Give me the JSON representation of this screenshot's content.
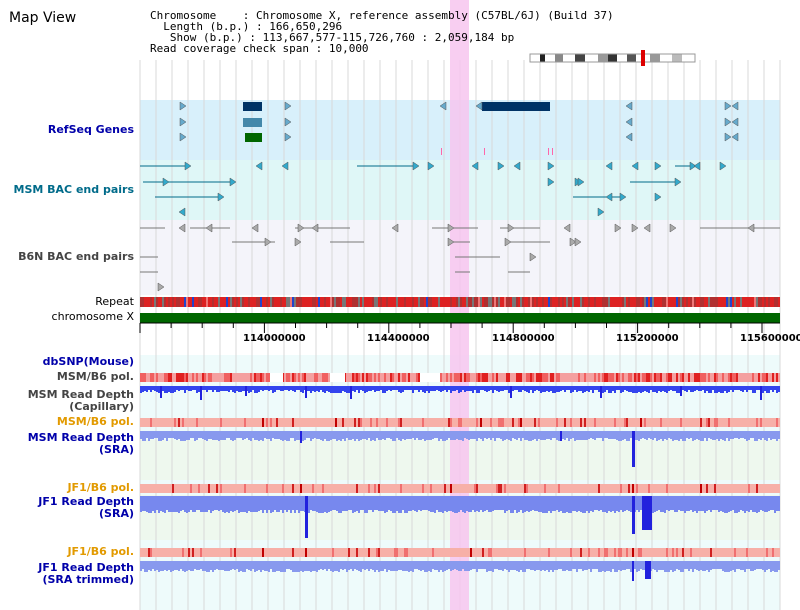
{
  "header": {
    "title": "Map View",
    "chromosome_key": "Chromosome",
    "chromosome_value": ": Chromosome X, reference assembly (C57BL/6J) (Build 37)",
    "length_key": "Length (b.p.)",
    "length_value": ": 166,650,296",
    "show_key": "Show (b.p.)",
    "show_value": ": 113,667,577-115,726,760 : 2,059,184 bp",
    "coverage_key": "Read coverage check span",
    "coverage_value": ": 10,000"
  },
  "tracks": {
    "refseq": "RefSeq Genes",
    "msm_bac": "MSM BAC end pairs",
    "b6n_bac": "B6N BAC end pairs",
    "repeat": "Repeat",
    "chromosome": "chromosome X",
    "dbsnp": "dbSNP(Mouse)",
    "msm_b6_pol": "MSM/B6 pol.",
    "msm_rd_cap_1": "MSM Read Depth",
    "msm_rd_cap_2": "(Capillary)",
    "msm_b6_pol_2": "MSM/B6 pol.",
    "msm_rd_sra_1": "MSM Read Depth",
    "msm_rd_sra_2": "(SRA)",
    "jf1_b6_pol": "JF1/B6 pol.",
    "jf1_rd_sra_1": "JF1 Read Depth",
    "jf1_rd_sra_2": "(SRA)",
    "jf1_b6_pol_2": "JF1/B6 pol.",
    "jf1_rd_trim_1": "JF1 Read Depth",
    "jf1_rd_trim_2": "(SRA trimmed)"
  },
  "axis": {
    "ticks": [
      "114000000",
      "114400000",
      "114800000",
      "115200000",
      "115600000"
    ]
  },
  "colors": {
    "highlight": "#f7c6ee",
    "refseq_bg": "#d8f0fb",
    "msm_bg": "#dff7f7",
    "b6n_bg": "#f4f4fa",
    "chromosome_bar": "#006600",
    "pol_red": "#e02020",
    "depth_blue": "#3344ee"
  }
}
